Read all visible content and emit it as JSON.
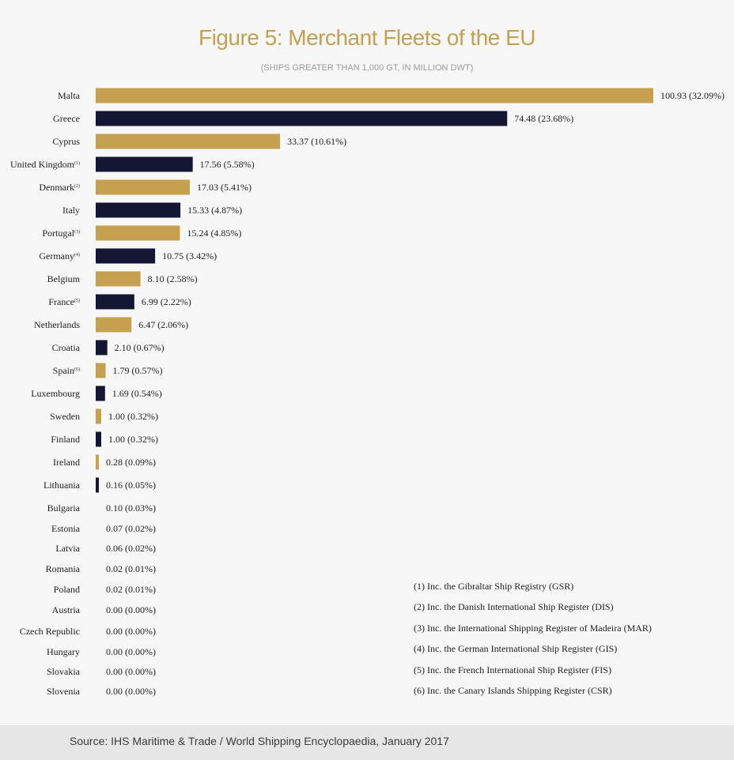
{
  "colors": {
    "gold": "#c6a04e",
    "navy": "#131733",
    "title": "#c4a04f"
  },
  "chart_data": {
    "type": "bar",
    "orientation": "horizontal",
    "title": "Figure 5: Merchant Fleets of the EU",
    "subtitle": "(SHIPS GREATER THAN 1,000 GT, IN MILLION DWT)",
    "xlim": [
      0,
      100.93
    ],
    "grid": false,
    "categories": [
      {
        "name": "Malta",
        "note": "",
        "value": 100.93,
        "label": "100.93 (32.09%)"
      },
      {
        "name": "Greece",
        "note": "",
        "value": 74.48,
        "label": "74.48 (23.68%)"
      },
      {
        "name": "Cyprus",
        "note": "",
        "value": 33.37,
        "label": "33.37 (10.61%)"
      },
      {
        "name": "United Kingdom",
        "note": "(1)",
        "value": 17.56,
        "label": "17.56 (5.58%)"
      },
      {
        "name": "Denmark",
        "note": "(2)",
        "value": 17.03,
        "label": "17.03 (5.41%)"
      },
      {
        "name": "Italy",
        "note": "",
        "value": 15.33,
        "label": "15.33 (4.87%)"
      },
      {
        "name": "Portugal",
        "note": "(3)",
        "value": 15.24,
        "label": "15.24 (4.85%)"
      },
      {
        "name": "Germany",
        "note": "(4)",
        "value": 10.75,
        "label": "10.75 (3.42%)"
      },
      {
        "name": "Belgium",
        "note": "",
        "value": 8.1,
        "label": "8.10 (2.58%)"
      },
      {
        "name": "France",
        "note": "(5)",
        "value": 6.99,
        "label": "6.99 (2.22%)"
      },
      {
        "name": "Netherlands",
        "note": "",
        "value": 6.47,
        "label": "6.47 (2.06%)"
      },
      {
        "name": "Croatia",
        "note": "",
        "value": 2.1,
        "label": "2.10 (0.67%)"
      },
      {
        "name": "Spain",
        "note": "(6)",
        "value": 1.79,
        "label": "1.79 (0.57%)"
      },
      {
        "name": "Luxembourg",
        "note": "",
        "value": 1.69,
        "label": "1.69 (0.54%)"
      },
      {
        "name": "Sweden",
        "note": "",
        "value": 1.0,
        "label": "1.00 (0.32%)"
      },
      {
        "name": "Finland",
        "note": "",
        "value": 1.0,
        "label": "1.00 (0.32%)"
      },
      {
        "name": "Ireland",
        "note": "",
        "value": 0.28,
        "label": "0.28 (0.09%)"
      },
      {
        "name": "Lithuania",
        "note": "",
        "value": 0.16,
        "label": "0.16 (0.05%)"
      },
      {
        "name": "Bulgaria",
        "note": "",
        "value": 0.1,
        "label": "0.10 (0.03%)"
      },
      {
        "name": "Estonia",
        "note": "",
        "value": 0.07,
        "label": "0.07 (0.02%)"
      },
      {
        "name": "Latvia",
        "note": "",
        "value": 0.06,
        "label": "0.06 (0.02%)"
      },
      {
        "name": "Romania",
        "note": "",
        "value": 0.02,
        "label": "0.02 (0.01%)"
      },
      {
        "name": "Poland",
        "note": "",
        "value": 0.02,
        "label": "0.02 (0.01%)"
      },
      {
        "name": "Austria",
        "note": "",
        "value": 0.0,
        "label": "0.00 (0.00%)"
      },
      {
        "name": "Czech Republic",
        "note": "",
        "value": 0.0,
        "label": "0.00 (0.00%)"
      },
      {
        "name": "Hungary",
        "note": "",
        "value": 0.0,
        "label": "0.00 (0.00%)"
      },
      {
        "name": "Slovakia",
        "note": "",
        "value": 0.0,
        "label": "0.00 (0.00%)"
      },
      {
        "name": "Slovenia",
        "note": "",
        "value": 0.0,
        "label": "0.00 (0.00%)"
      }
    ],
    "footnotes": [
      "(1) Inc. the Gibraltar Ship Registry (GSR)",
      "(2) Inc. the Danish International Ship Register (DIS)",
      "(3) Inc. the International Shipping Register of Madeira (MAR)",
      "(4) Inc. the German International Ship Register (GIS)",
      "(5) Inc. the French International Ship Register (FIS)",
      "(6) Inc. the Canary Islands Shipping Register (CSR)"
    ]
  },
  "source": "Source: IHS Maritime & Trade / World Shipping Encyclopaedia, January 2017"
}
